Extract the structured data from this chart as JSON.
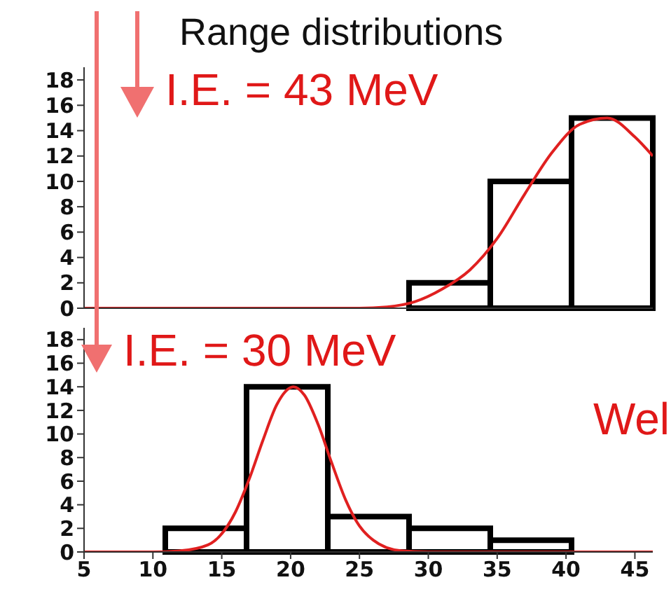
{
  "chart_data": [
    {
      "type": "histogram",
      "title": "Range distributions",
      "annotations": [
        "I.E. = 43  MeV"
      ],
      "bins": [
        5,
        10.9,
        16.8,
        22.7,
        28.6,
        34.5,
        40.4,
        46.3
      ],
      "values": [
        0,
        0,
        0,
        0,
        2,
        10,
        15
      ],
      "color": "#000000",
      "xlim": [
        5,
        46.3
      ],
      "xticks": [
        5,
        10,
        15,
        20,
        25,
        30,
        35,
        40,
        45
      ],
      "ylim": [
        0,
        19
      ],
      "yticks": [
        0,
        2,
        4,
        6,
        8,
        10,
        12,
        14,
        16,
        18
      ],
      "tick_labels": "y",
      "series": [
        {
          "type": "line",
          "color": "#e02020",
          "x": [
            5,
            20,
            25,
            27,
            29,
            31,
            33,
            35,
            37,
            39,
            41,
            43,
            45,
            46.3
          ],
          "values": [
            0,
            0,
            0,
            0.1,
            0.5,
            1.5,
            3,
            5.5,
            9,
            12.3,
            14.5,
            15,
            13.5,
            12
          ]
        }
      ]
    },
    {
      "type": "histogram",
      "annotations": [
        "I.E. = 30 MeV",
        "Wel"
      ],
      "bins": [
        5,
        10.9,
        16.8,
        22.7,
        28.6,
        34.5,
        40.4,
        46.3
      ],
      "values": [
        0,
        2,
        14,
        3,
        2,
        1,
        0
      ],
      "color": "#000000",
      "xlim": [
        5,
        46.3
      ],
      "xticks": [
        5,
        10,
        15,
        20,
        25,
        30,
        35,
        40,
        45
      ],
      "ylim": [
        0,
        19
      ],
      "yticks": [
        0,
        2,
        4,
        6,
        8,
        10,
        12,
        14,
        16,
        18
      ],
      "series": [
        {
          "type": "line",
          "color": "#e02020",
          "x": [
            5,
            10,
            12,
            14,
            16,
            17,
            18,
            19,
            20.2,
            21,
            22,
            23,
            24,
            25,
            26,
            28,
            30,
            46.3
          ],
          "values": [
            0,
            0,
            0.1,
            0.6,
            3.4,
            6.2,
            9.5,
            12.5,
            14,
            13.3,
            10.8,
            7.5,
            4.4,
            2.2,
            1,
            0.1,
            0,
            0
          ]
        }
      ]
    }
  ]
}
